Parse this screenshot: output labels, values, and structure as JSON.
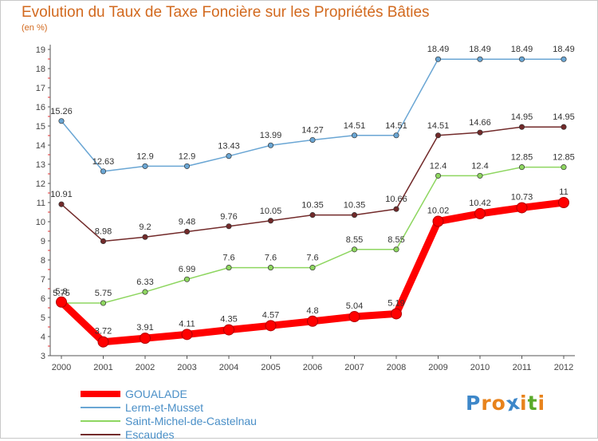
{
  "title": "Evolution du Taux de Taxe Foncière sur les Propriétés Bâties",
  "subtitle": "(en %)",
  "logo": {
    "text": "Proxiti",
    "colors": [
      "#3d87c9",
      "#e8831c",
      "#e8831c",
      "#3d87c9",
      "#e8831c",
      "#5aaa2a",
      "#e8831c"
    ]
  },
  "chart_data": {
    "type": "line",
    "title": "Evolution du Taux de Taxe Foncière sur les Propriétés Bâties",
    "subtitle": "(en %)",
    "xlabel": "",
    "ylabel": "(en %)",
    "x": [
      "2000",
      "2001",
      "2002",
      "2003",
      "2004",
      "2005",
      "2006",
      "2007",
      "2008",
      "2009",
      "2010",
      "2011",
      "2012"
    ],
    "ylim": [
      3,
      19
    ],
    "yticks": [
      "3",
      "4",
      "5",
      "6",
      "7",
      "8",
      "9",
      "10",
      "11",
      "12",
      "13",
      "14",
      "15",
      "16",
      "17",
      "18",
      "19"
    ],
    "grid": false,
    "legend_position": "bottom-left",
    "series": [
      {
        "name": "Escaudes",
        "color": "#722a2a",
        "values": [
          10.91,
          8.98,
          9.2,
          9.48,
          9.76,
          10.05,
          10.35,
          10.35,
          10.66,
          14.51,
          14.66,
          14.95,
          14.95
        ],
        "labels": [
          "10.91",
          "8.98",
          "9.2",
          "9.48",
          "9.76",
          "10.05",
          "10.35",
          "10.35",
          "10.66",
          "14.51",
          "14.66",
          "14.95",
          "14.95"
        ]
      },
      {
        "name": "Saint-Michel-de-Castelnau",
        "color": "#8ed660",
        "values": [
          5.75,
          5.75,
          6.33,
          6.99,
          7.6,
          7.6,
          7.6,
          8.55,
          8.55,
          12.4,
          12.4,
          12.85,
          12.85
        ],
        "labels": [
          "5.75",
          "5.75",
          "6.33",
          "6.99",
          "7.6",
          "7.6",
          "7.6",
          "8.55",
          "8.55",
          "12.4",
          "12.4",
          "12.85",
          "12.85"
        ]
      },
      {
        "name": "Lerm-et-Musset",
        "color": "#6aa6d4",
        "values": [
          15.26,
          12.63,
          12.9,
          12.9,
          13.43,
          13.99,
          14.27,
          14.51,
          14.51,
          18.49,
          18.49,
          18.49,
          18.49
        ],
        "labels": [
          "15.26",
          "12.63",
          "12.9",
          "12.9",
          "13.43",
          "13.99",
          "14.27",
          "14.51",
          "14.51",
          "18.49",
          "18.49",
          "18.49",
          "18.49"
        ]
      },
      {
        "name": "GOUALADE",
        "color": "#ff0000",
        "values": [
          5.8,
          3.72,
          3.91,
          4.11,
          4.35,
          4.57,
          4.8,
          5.04,
          5.19,
          10.02,
          10.42,
          10.73,
          11
        ],
        "labels": [
          "5.8",
          "3.72",
          "3.91",
          "4.11",
          "4.35",
          "4.57",
          "4.8",
          "5.04",
          "5.19",
          "10.02",
          "10.42",
          "10.73",
          "11"
        ]
      }
    ],
    "legend": [
      "GOUALADE",
      "Lerm-et-Musset",
      "Saint-Michel-de-Castelnau",
      "Escaudes"
    ]
  }
}
